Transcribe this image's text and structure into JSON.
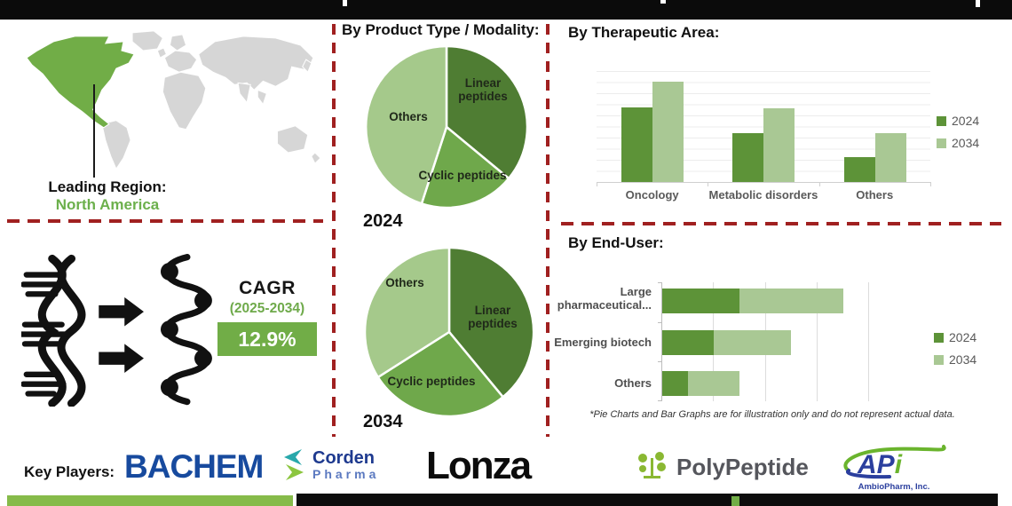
{
  "map_section": {
    "leading_region_label": "Leading Region:",
    "leading_region_value": "North America"
  },
  "cagr_section": {
    "label": "CAGR",
    "period": "(2025-2034)",
    "value": "12.9%"
  },
  "sections": {
    "product_type_heading": "By Product Type / Modality:"
  },
  "chart_data": [
    {
      "id": "product_type_2024",
      "type": "pie",
      "title": "2024",
      "labels": [
        "Linear peptides",
        "Cyclic peptides",
        "Others"
      ],
      "values": [
        36,
        19,
        45
      ],
      "colors": [
        "#4f7d33",
        "#6fa84b",
        "#a5c98b"
      ],
      "note": "illustrative only"
    },
    {
      "id": "product_type_2034",
      "type": "pie",
      "title": "2034",
      "labels": [
        "Linear peptides",
        "Cyclic peptides",
        "Others"
      ],
      "values": [
        39,
        27,
        34
      ],
      "colors": [
        "#4f7d33",
        "#6fa84b",
        "#a5c98b"
      ],
      "note": "illustrative only"
    },
    {
      "id": "therapeutic_area",
      "type": "bar",
      "title": "By Therapeutic Area:",
      "categories": [
        "Oncology",
        "Metabolic disorders",
        "Others"
      ],
      "series": [
        {
          "name": "2024",
          "color": "#5d9338",
          "values": [
            67,
            44,
            22
          ]
        },
        {
          "name": "2034",
          "color": "#a9c894",
          "values": [
            90,
            66,
            44
          ]
        }
      ],
      "ylim": [
        0,
        100
      ],
      "grid": true,
      "legend_position": "right",
      "note": "illustrative only, no value labels shown"
    },
    {
      "id": "end_user",
      "type": "bar",
      "orientation": "horizontal",
      "stacked": true,
      "title": "By End-User:",
      "categories": [
        "Large pharmaceutical...",
        "Emerging biotech",
        "Others"
      ],
      "series": [
        {
          "name": "2024",
          "color": "#5d9338",
          "values": [
            1.5,
            1.0,
            0.5
          ]
        },
        {
          "name": "2034",
          "color": "#a9c894",
          "values": [
            2.0,
            1.5,
            1.0
          ]
        }
      ],
      "xlim": [
        0,
        4
      ],
      "grid": true,
      "legend_position": "right",
      "note": "illustrative only, no value labels shown"
    }
  ],
  "footnote": "*Pie Charts and Bar Graphs are for illustration only and do not represent actual data.",
  "key_players": {
    "label": "Key Players:",
    "bachem": "BACHEM",
    "corden_line1": "Corden",
    "corden_line2": "Pharma",
    "lonza": "Lonza",
    "polypeptide": "PolyPeptide",
    "api_main": "APi",
    "api_sub": "AmbioPharm, Inc."
  },
  "colors": {
    "accent_green": "#71ad47",
    "dark_green": "#4f7d33",
    "mid_green": "#6fa84b",
    "light_green": "#a5c98b",
    "divider_red": "#a02020",
    "footer_green": "#86bb4a",
    "map_gray": "#d6d6d6"
  }
}
